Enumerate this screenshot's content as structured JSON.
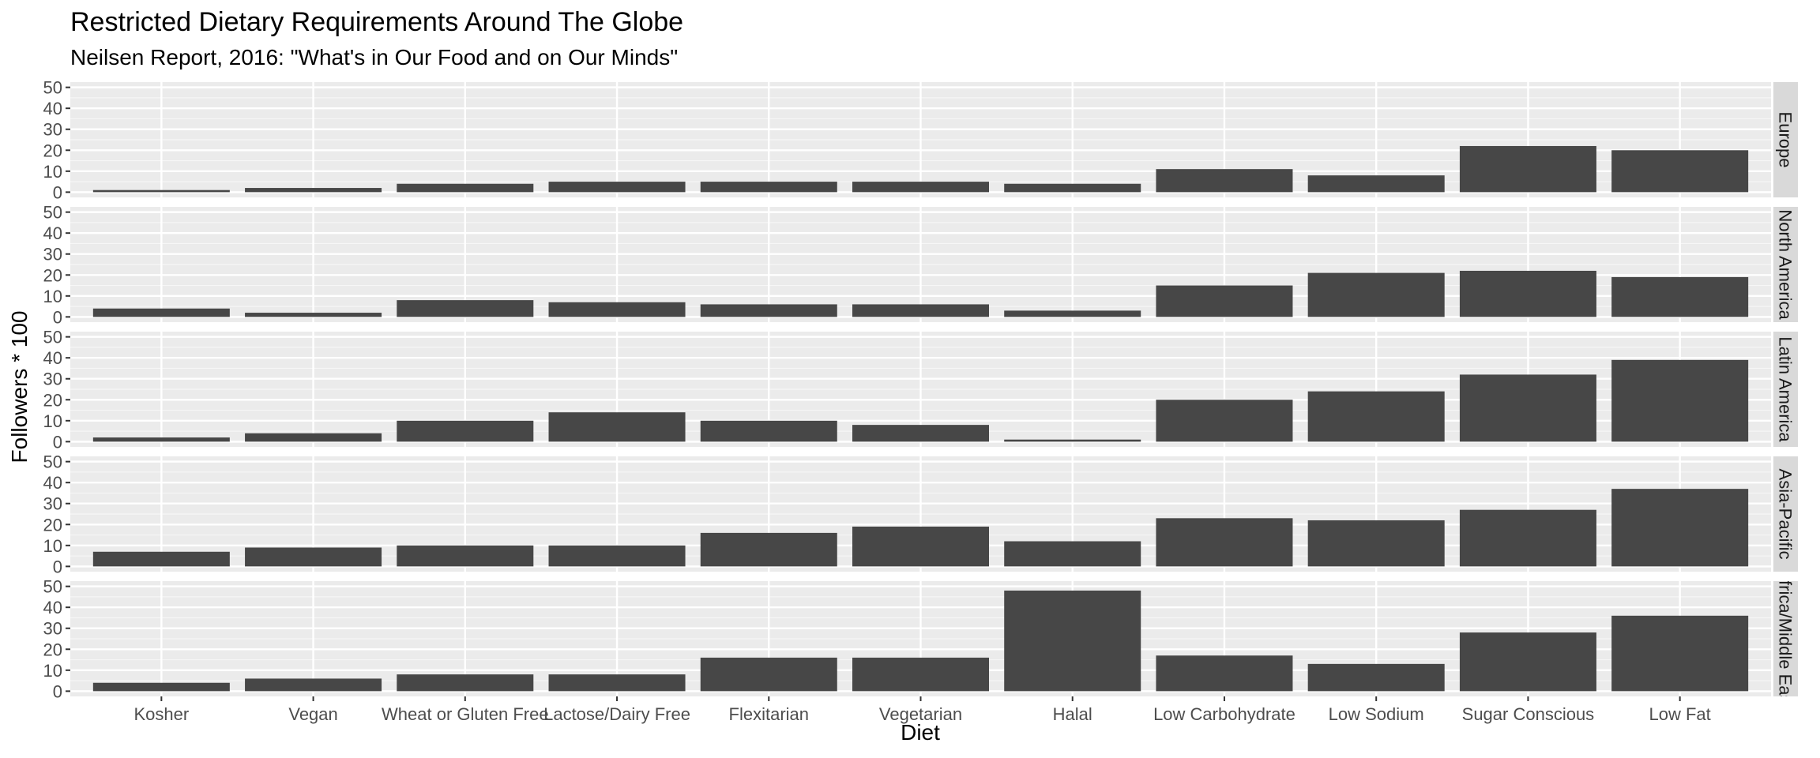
{
  "chart_data": {
    "type": "bar",
    "title": "Restricted Dietary Requirements Around The Globe",
    "subtitle": "Neilsen Report, 2016: \"What's in Our Food and on Our Minds\"",
    "xlabel": "Diet",
    "ylabel": "Followers * 100",
    "ylim": [
      0,
      50
    ],
    "yticks": [
      0,
      10,
      20,
      30,
      40,
      50
    ],
    "ytick_labels": [
      "0",
      "10",
      "20",
      "30",
      "40",
      "50"
    ],
    "grid": true,
    "facet_strip_position": "right",
    "categories": [
      "Kosher",
      "Vegan",
      "Wheat or Gluten Free",
      "Lactose/Dairy Free",
      "Flexitarian",
      "Vegetarian",
      "Halal",
      "Low Carbohydrate",
      "Low Sodium",
      "Sugar Conscious",
      "Low Fat"
    ],
    "facets": [
      {
        "name": "Europe",
        "values": [
          1,
          2,
          4,
          5,
          5,
          5,
          4,
          11,
          8,
          22,
          20
        ]
      },
      {
        "name": "North America",
        "values": [
          4,
          2,
          8,
          7,
          6,
          6,
          3,
          15,
          21,
          22,
          19
        ]
      },
      {
        "name": "Latin America",
        "values": [
          2,
          4,
          10,
          14,
          10,
          8,
          1,
          20,
          24,
          32,
          39
        ]
      },
      {
        "name": "Asia-Pacific",
        "values": [
          7,
          9,
          10,
          10,
          16,
          19,
          12,
          23,
          22,
          27,
          37
        ]
      },
      {
        "name": "Africa/Middle East",
        "values": [
          4,
          6,
          8,
          8,
          16,
          16,
          48,
          17,
          13,
          28,
          36
        ]
      }
    ]
  },
  "colors": {
    "panel_background": "#ebebeb",
    "grid_major": "#ffffff",
    "bar_fill": "#474747",
    "strip_background": "#d9d9d9",
    "tick_text": "#4d4d4d"
  }
}
